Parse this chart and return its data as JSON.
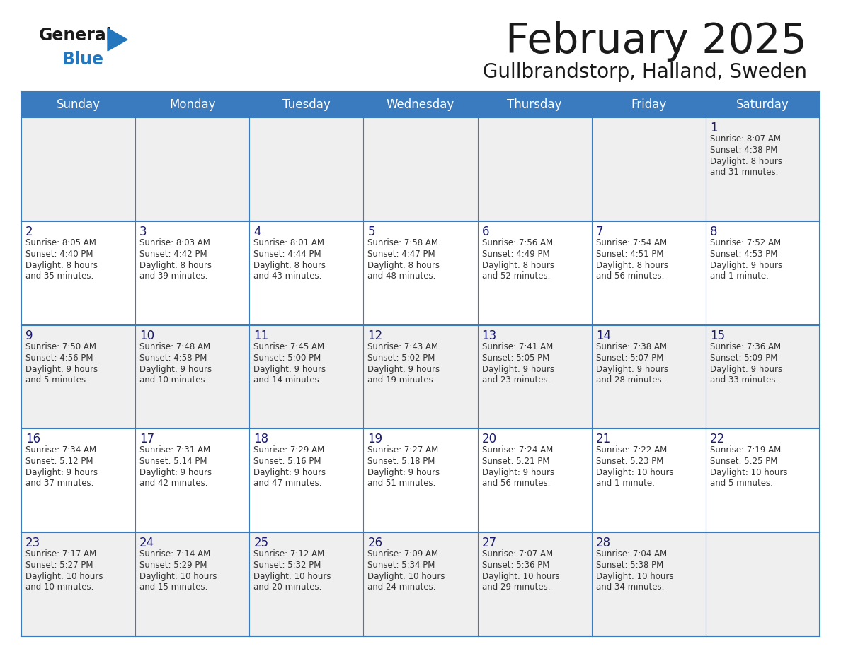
{
  "title": "February 2025",
  "subtitle": "Gullbrandstorp, Halland, Sweden",
  "header_color": "#3a7bbf",
  "header_text_color": "#ffffff",
  "day_names": [
    "Sunday",
    "Monday",
    "Tuesday",
    "Wednesday",
    "Thursday",
    "Friday",
    "Saturday"
  ],
  "bg_color": "#ffffff",
  "cell_bg_row0": "#f0f0f0",
  "cell_bg_row1": "#ffffff",
  "cell_bg_row2": "#f0f0f0",
  "cell_bg_row3": "#ffffff",
  "cell_bg_row4": "#f0f0f0",
  "border_color": "#3a7bbf",
  "text_color": "#333333",
  "daynum_color": "#1a1a6e",
  "info_color": "#333333",
  "logo_general_color": "#1a1a1a",
  "logo_blue_color": "#2e7bbf",
  "weeks": [
    [
      {
        "day": null,
        "sunrise": null,
        "sunset": null,
        "daylight": null
      },
      {
        "day": null,
        "sunrise": null,
        "sunset": null,
        "daylight": null
      },
      {
        "day": null,
        "sunrise": null,
        "sunset": null,
        "daylight": null
      },
      {
        "day": null,
        "sunrise": null,
        "sunset": null,
        "daylight": null
      },
      {
        "day": null,
        "sunrise": null,
        "sunset": null,
        "daylight": null
      },
      {
        "day": null,
        "sunrise": null,
        "sunset": null,
        "daylight": null
      },
      {
        "day": 1,
        "sunrise": "8:07 AM",
        "sunset": "4:38 PM",
        "daylight": "8 hours\nand 31 minutes."
      }
    ],
    [
      {
        "day": 2,
        "sunrise": "8:05 AM",
        "sunset": "4:40 PM",
        "daylight": "8 hours\nand 35 minutes."
      },
      {
        "day": 3,
        "sunrise": "8:03 AM",
        "sunset": "4:42 PM",
        "daylight": "8 hours\nand 39 minutes."
      },
      {
        "day": 4,
        "sunrise": "8:01 AM",
        "sunset": "4:44 PM",
        "daylight": "8 hours\nand 43 minutes."
      },
      {
        "day": 5,
        "sunrise": "7:58 AM",
        "sunset": "4:47 PM",
        "daylight": "8 hours\nand 48 minutes."
      },
      {
        "day": 6,
        "sunrise": "7:56 AM",
        "sunset": "4:49 PM",
        "daylight": "8 hours\nand 52 minutes."
      },
      {
        "day": 7,
        "sunrise": "7:54 AM",
        "sunset": "4:51 PM",
        "daylight": "8 hours\nand 56 minutes."
      },
      {
        "day": 8,
        "sunrise": "7:52 AM",
        "sunset": "4:53 PM",
        "daylight": "9 hours\nand 1 minute."
      }
    ],
    [
      {
        "day": 9,
        "sunrise": "7:50 AM",
        "sunset": "4:56 PM",
        "daylight": "9 hours\nand 5 minutes."
      },
      {
        "day": 10,
        "sunrise": "7:48 AM",
        "sunset": "4:58 PM",
        "daylight": "9 hours\nand 10 minutes."
      },
      {
        "day": 11,
        "sunrise": "7:45 AM",
        "sunset": "5:00 PM",
        "daylight": "9 hours\nand 14 minutes."
      },
      {
        "day": 12,
        "sunrise": "7:43 AM",
        "sunset": "5:02 PM",
        "daylight": "9 hours\nand 19 minutes."
      },
      {
        "day": 13,
        "sunrise": "7:41 AM",
        "sunset": "5:05 PM",
        "daylight": "9 hours\nand 23 minutes."
      },
      {
        "day": 14,
        "sunrise": "7:38 AM",
        "sunset": "5:07 PM",
        "daylight": "9 hours\nand 28 minutes."
      },
      {
        "day": 15,
        "sunrise": "7:36 AM",
        "sunset": "5:09 PM",
        "daylight": "9 hours\nand 33 minutes."
      }
    ],
    [
      {
        "day": 16,
        "sunrise": "7:34 AM",
        "sunset": "5:12 PM",
        "daylight": "9 hours\nand 37 minutes."
      },
      {
        "day": 17,
        "sunrise": "7:31 AM",
        "sunset": "5:14 PM",
        "daylight": "9 hours\nand 42 minutes."
      },
      {
        "day": 18,
        "sunrise": "7:29 AM",
        "sunset": "5:16 PM",
        "daylight": "9 hours\nand 47 minutes."
      },
      {
        "day": 19,
        "sunrise": "7:27 AM",
        "sunset": "5:18 PM",
        "daylight": "9 hours\nand 51 minutes."
      },
      {
        "day": 20,
        "sunrise": "7:24 AM",
        "sunset": "5:21 PM",
        "daylight": "9 hours\nand 56 minutes."
      },
      {
        "day": 21,
        "sunrise": "7:22 AM",
        "sunset": "5:23 PM",
        "daylight": "10 hours\nand 1 minute."
      },
      {
        "day": 22,
        "sunrise": "7:19 AM",
        "sunset": "5:25 PM",
        "daylight": "10 hours\nand 5 minutes."
      }
    ],
    [
      {
        "day": 23,
        "sunrise": "7:17 AM",
        "sunset": "5:27 PM",
        "daylight": "10 hours\nand 10 minutes."
      },
      {
        "day": 24,
        "sunrise": "7:14 AM",
        "sunset": "5:29 PM",
        "daylight": "10 hours\nand 15 minutes."
      },
      {
        "day": 25,
        "sunrise": "7:12 AM",
        "sunset": "5:32 PM",
        "daylight": "10 hours\nand 20 minutes."
      },
      {
        "day": 26,
        "sunrise": "7:09 AM",
        "sunset": "5:34 PM",
        "daylight": "10 hours\nand 24 minutes."
      },
      {
        "day": 27,
        "sunrise": "7:07 AM",
        "sunset": "5:36 PM",
        "daylight": "10 hours\nand 29 minutes."
      },
      {
        "day": 28,
        "sunrise": "7:04 AM",
        "sunset": "5:38 PM",
        "daylight": "10 hours\nand 34 minutes."
      },
      {
        "day": null,
        "sunrise": null,
        "sunset": null,
        "daylight": null
      }
    ]
  ],
  "row_bg_colors": [
    "#efefef",
    "#ffffff",
    "#efefef",
    "#ffffff",
    "#efefef"
  ]
}
